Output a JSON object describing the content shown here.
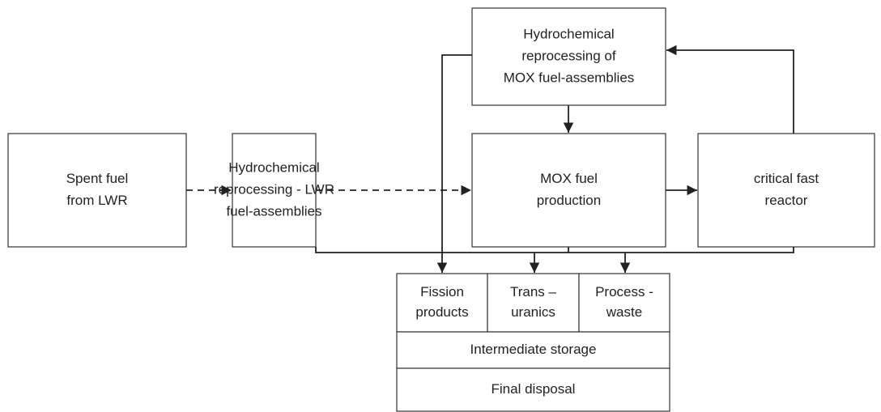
{
  "nodes": [
    {
      "lines": [
        "Spent fuel",
        "from LWR"
      ]
    },
    {
      "lines": [
        "Hydrochemical",
        "reprocessing - LWR",
        "fuel-assemblies"
      ]
    },
    {
      "lines": [
        "MOX fuel",
        "production"
      ]
    },
    {
      "lines": [
        "critical fast",
        "reactor"
      ]
    },
    {
      "lines": [
        "Hydrochemical",
        "reprocessing of",
        "MOX fuel-assemblies"
      ]
    }
  ],
  "storage": {
    "cells": [
      {
        "lines": [
          "Fission",
          "products"
        ]
      },
      {
        "lines": [
          "Trans –",
          "uranics"
        ]
      },
      {
        "lines": [
          "Process -",
          "waste"
        ]
      }
    ],
    "intermediate": "Intermediate storage",
    "final": "Final disposal"
  }
}
